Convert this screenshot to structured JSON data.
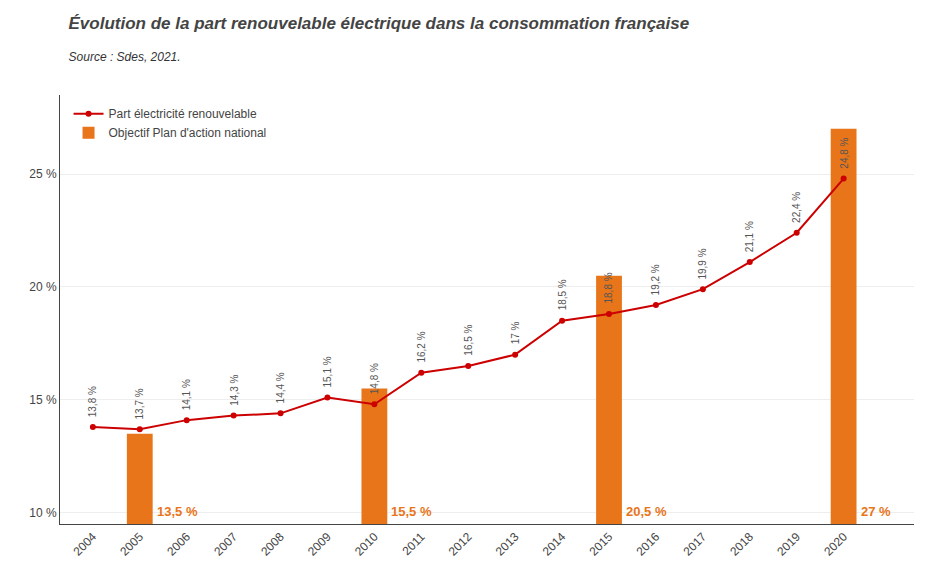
{
  "chart_data": {
    "type": "bar",
    "title": "Évolution de la part renouvelable électrique dans la consommation française",
    "subtitle": "Source : Sdes, 2021.",
    "series": [
      {
        "name": "Part électricité renouvelable",
        "type": "line",
        "color": "#CC0000",
        "marker": "circle",
        "x": [
          2004,
          2005,
          2006,
          2007,
          2008,
          2009,
          2010,
          2011,
          2012,
          2013,
          2014,
          2015,
          2016,
          2017,
          2018,
          2019,
          2020
        ],
        "values": [
          13.8,
          13.7,
          14.1,
          14.3,
          14.4,
          15.1,
          14.8,
          16.2,
          16.5,
          17.0,
          18.5,
          18.8,
          19.2,
          19.9,
          21.1,
          22.4,
          24.8
        ],
        "value_labels": [
          "13,8 %",
          "13,7 %",
          "14,1 %",
          "14,3 %",
          "14,4 %",
          "15,1 %",
          "14,8 %",
          "16,2 %",
          "16,5 %",
          "17 %",
          "18,5 %",
          "18,8 %",
          "19,2 %",
          "19,9 %",
          "21,1 %",
          "22,4 %",
          "24,8 %"
        ]
      },
      {
        "name": "Objectif Plan d'action national",
        "type": "bar",
        "color": "#E8751A",
        "x": [
          2005,
          2010,
          2015,
          2020
        ],
        "values": [
          13.5,
          15.5,
          20.5,
          27.0
        ],
        "value_labels": [
          "13,5 %",
          "15,5 %",
          "20,5 %",
          "27 %"
        ]
      }
    ],
    "xlim": [
      2003.3,
      2021.5
    ],
    "xticks": [
      2004,
      2005,
      2006,
      2007,
      2008,
      2009,
      2010,
      2011,
      2012,
      2013,
      2014,
      2015,
      2016,
      2017,
      2018,
      2019,
      2020
    ],
    "ylim": [
      9.5,
      28.5
    ],
    "yticks": [
      {
        "value": 10,
        "label": "10 %"
      },
      {
        "value": 15,
        "label": "15 %"
      },
      {
        "value": 20,
        "label": "20 %"
      },
      {
        "value": 25,
        "label": "25 %"
      }
    ],
    "grid": true,
    "legend": "upper left",
    "data_labels": true
  }
}
